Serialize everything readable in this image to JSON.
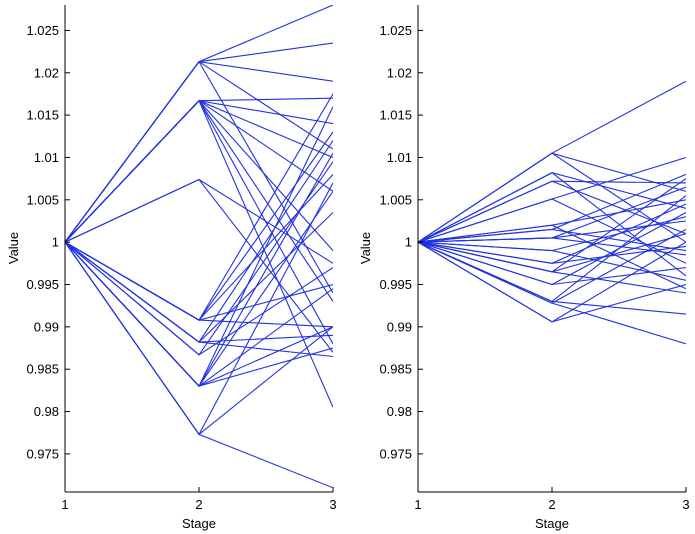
{
  "colors": {
    "line": "#2233dd",
    "axis": "#000000",
    "background": "#ffffff"
  },
  "chart_data": [
    {
      "type": "line",
      "xlabel": "Stage",
      "ylabel": "Value",
      "xlim": [
        1,
        3
      ],
      "ylim": [
        0.9705,
        1.028
      ],
      "xticks": [
        1,
        2,
        3
      ],
      "xtick_labels": [
        "1",
        "2",
        "3"
      ],
      "yticks": [
        0.975,
        0.98,
        0.985,
        0.99,
        0.995,
        1,
        1.005,
        1.01,
        1.015,
        1.02,
        1.025
      ],
      "ytick_labels": [
        "0.975",
        "0.98",
        "0.985",
        "0.99",
        "0.995",
        "1",
        "1.005",
        "1.01",
        "1.015",
        "1.02",
        "1.025"
      ],
      "grid": false,
      "series": [
        {
          "x": [
            1,
            2,
            3
          ],
          "y": [
            1,
            1.0213,
            1.028
          ]
        },
        {
          "x": [
            1,
            2,
            3
          ],
          "y": [
            1,
            1.0213,
            1.0235
          ]
        },
        {
          "x": [
            1,
            2,
            3
          ],
          "y": [
            1,
            1.0213,
            1.019
          ]
        },
        {
          "x": [
            1,
            2,
            3
          ],
          "y": [
            1,
            1.0213,
            1.011
          ]
        },
        {
          "x": [
            1,
            2,
            3
          ],
          "y": [
            1,
            1.0213,
            0.994
          ]
        },
        {
          "x": [
            1,
            2,
            3
          ],
          "y": [
            1,
            1.0167,
            1.017
          ]
        },
        {
          "x": [
            1,
            2,
            3
          ],
          "y": [
            1,
            1.0167,
            1.014
          ]
        },
        {
          "x": [
            1,
            2,
            3
          ],
          "y": [
            1,
            1.0167,
            1.01
          ]
        },
        {
          "x": [
            1,
            2,
            3
          ],
          "y": [
            1,
            1.0167,
            1.006
          ]
        },
        {
          "x": [
            1,
            2,
            3
          ],
          "y": [
            1,
            1.0167,
            0.999
          ]
        },
        {
          "x": [
            1,
            2,
            3
          ],
          "y": [
            1,
            1.0167,
            0.993
          ]
        },
        {
          "x": [
            1,
            2,
            3
          ],
          "y": [
            1,
            1.0167,
            0.988
          ]
        },
        {
          "x": [
            1,
            2,
            3
          ],
          "y": [
            1,
            1.0167,
            0.9805
          ]
        },
        {
          "x": [
            1,
            2,
            3
          ],
          "y": [
            1,
            1.0074,
            0.9975
          ]
        },
        {
          "x": [
            1,
            2,
            3
          ],
          "y": [
            1,
            1.0074,
            0.987
          ]
        },
        {
          "x": [
            1,
            2,
            3
          ],
          "y": [
            1,
            0.9908,
            1.0175
          ]
        },
        {
          "x": [
            1,
            2,
            3
          ],
          "y": [
            1,
            0.9908,
            1.013
          ]
        },
        {
          "x": [
            1,
            2,
            3
          ],
          "y": [
            1,
            0.9908,
            1.008
          ]
        },
        {
          "x": [
            1,
            2,
            3
          ],
          "y": [
            1,
            0.9908,
            0.995
          ]
        },
        {
          "x": [
            1,
            2,
            3
          ],
          "y": [
            1,
            0.9908,
            0.99
          ]
        },
        {
          "x": [
            1,
            2,
            3
          ],
          "y": [
            1,
            0.9882,
            1.012
          ]
        },
        {
          "x": [
            1,
            2,
            3
          ],
          "y": [
            1,
            0.9882,
            1.0035
          ]
        },
        {
          "x": [
            1,
            2,
            3
          ],
          "y": [
            1,
            0.9882,
            0.989
          ]
        },
        {
          "x": [
            1,
            2,
            3
          ],
          "y": [
            1,
            0.9882,
            0.9865
          ]
        },
        {
          "x": [
            1,
            2,
            3
          ],
          "y": [
            1,
            0.9867,
            1.0095
          ]
        },
        {
          "x": [
            1,
            2,
            3
          ],
          "y": [
            1,
            0.9867,
            0.997
          ]
        },
        {
          "x": [
            1,
            2,
            3
          ],
          "y": [
            1,
            0.983,
            1.016
          ]
        },
        {
          "x": [
            1,
            2,
            3
          ],
          "y": [
            1,
            0.983,
            1.0105
          ]
        },
        {
          "x": [
            1,
            2,
            3
          ],
          "y": [
            1,
            0.983,
            1.006
          ]
        },
        {
          "x": [
            1,
            2,
            3
          ],
          "y": [
            1,
            0.983,
            0.9945
          ]
        },
        {
          "x": [
            1,
            2,
            3
          ],
          "y": [
            1,
            0.983,
            0.99
          ]
        },
        {
          "x": [
            1,
            2,
            3
          ],
          "y": [
            1,
            0.983,
            0.9875
          ]
        },
        {
          "x": [
            1,
            2,
            3
          ],
          "y": [
            1,
            0.9773,
            1.007
          ]
        },
        {
          "x": [
            1,
            2,
            3
          ],
          "y": [
            1,
            0.9773,
            0.99
          ]
        },
        {
          "x": [
            1,
            2,
            3
          ],
          "y": [
            1,
            0.9773,
            0.971
          ]
        }
      ]
    },
    {
      "type": "line",
      "xlabel": "Stage",
      "ylabel": "Value",
      "xlim": [
        1,
        3
      ],
      "ylim": [
        0.9705,
        1.028
      ],
      "xticks": [
        1,
        2,
        3
      ],
      "xtick_labels": [
        "1",
        "2",
        "3"
      ],
      "yticks": [
        0.975,
        0.98,
        0.985,
        0.99,
        0.995,
        1,
        1.005,
        1.01,
        1.015,
        1.02,
        1.025
      ],
      "ytick_labels": [
        "0.975",
        "0.98",
        "0.985",
        "0.99",
        "0.995",
        "1",
        "1.005",
        "1.01",
        "1.015",
        "1.02",
        "1.025"
      ],
      "grid": false,
      "series": [
        {
          "x": [
            1,
            2,
            3
          ],
          "y": [
            1,
            1.0105,
            1.019
          ]
        },
        {
          "x": [
            1,
            2,
            3
          ],
          "y": [
            1,
            1.0105,
            1.006
          ]
        },
        {
          "x": [
            1,
            2,
            3
          ],
          "y": [
            1,
            1.0105,
            1.0
          ]
        },
        {
          "x": [
            1,
            2,
            3
          ],
          "y": [
            1,
            1.0082,
            1.004
          ]
        },
        {
          "x": [
            1,
            2,
            3
          ],
          "y": [
            1,
            1.0082,
            0.996
          ]
        },
        {
          "x": [
            1,
            2,
            3
          ],
          "y": [
            1,
            1.0072,
            1.007
          ]
        },
        {
          "x": [
            1,
            2,
            3
          ],
          "y": [
            1,
            1.0072,
            1.001
          ]
        },
        {
          "x": [
            1,
            2,
            3
          ],
          "y": [
            1,
            1.0051,
            1.01
          ]
        },
        {
          "x": [
            1,
            2,
            3
          ],
          "y": [
            1,
            1.0051,
            0.9975
          ]
        },
        {
          "x": [
            1,
            2,
            3
          ],
          "y": [
            1,
            1.002,
            1.005
          ]
        },
        {
          "x": [
            1,
            2,
            3
          ],
          "y": [
            1,
            1.002,
            0.9945
          ]
        },
        {
          "x": [
            1,
            2,
            3
          ],
          "y": [
            1,
            1.0015,
            1.008
          ]
        },
        {
          "x": [
            1,
            2,
            3
          ],
          "y": [
            1,
            1.0015,
            0.999
          ]
        },
        {
          "x": [
            1,
            2,
            3
          ],
          "y": [
            1,
            1.0005,
            1.0065
          ]
        },
        {
          "x": [
            1,
            2,
            3
          ],
          "y": [
            1,
            1.0005,
            1.0025
          ]
        },
        {
          "x": [
            1,
            2,
            3
          ],
          "y": [
            1,
            1.0005,
            0.9985
          ]
        },
        {
          "x": [
            1,
            2,
            3
          ],
          "y": [
            1,
            0.999,
            1.003
          ]
        },
        {
          "x": [
            1,
            2,
            3
          ],
          "y": [
            1,
            0.999,
            0.9955
          ]
        },
        {
          "x": [
            1,
            2,
            3
          ],
          "y": [
            1,
            0.9975,
            1.0045
          ]
        },
        {
          "x": [
            1,
            2,
            3
          ],
          "y": [
            1,
            0.9975,
            0.9995
          ]
        },
        {
          "x": [
            1,
            2,
            3
          ],
          "y": [
            1,
            0.9965,
            1.0075
          ]
        },
        {
          "x": [
            1,
            2,
            3
          ],
          "y": [
            1,
            0.9965,
            1.001
          ]
        },
        {
          "x": [
            1,
            2,
            3
          ],
          "y": [
            1,
            0.9965,
            0.994
          ]
        },
        {
          "x": [
            1,
            2,
            3
          ],
          "y": [
            1,
            0.995,
            1.0035
          ]
        },
        {
          "x": [
            1,
            2,
            3
          ],
          "y": [
            1,
            0.995,
            0.997
          ]
        },
        {
          "x": [
            1,
            2,
            3
          ],
          "y": [
            1,
            0.993,
            1.0055
          ]
        },
        {
          "x": [
            1,
            2,
            3
          ],
          "y": [
            1,
            0.993,
            0.9915
          ]
        },
        {
          "x": [
            1,
            2,
            3
          ],
          "y": [
            1,
            0.9928,
            1.0015
          ]
        },
        {
          "x": [
            1,
            2,
            3
          ],
          "y": [
            1,
            0.9928,
            0.988
          ]
        },
        {
          "x": [
            1,
            2,
            3
          ],
          "y": [
            1,
            0.9906,
            1.0
          ]
        },
        {
          "x": [
            1,
            2,
            3
          ],
          "y": [
            1,
            0.9906,
            0.995
          ]
        }
      ]
    }
  ]
}
